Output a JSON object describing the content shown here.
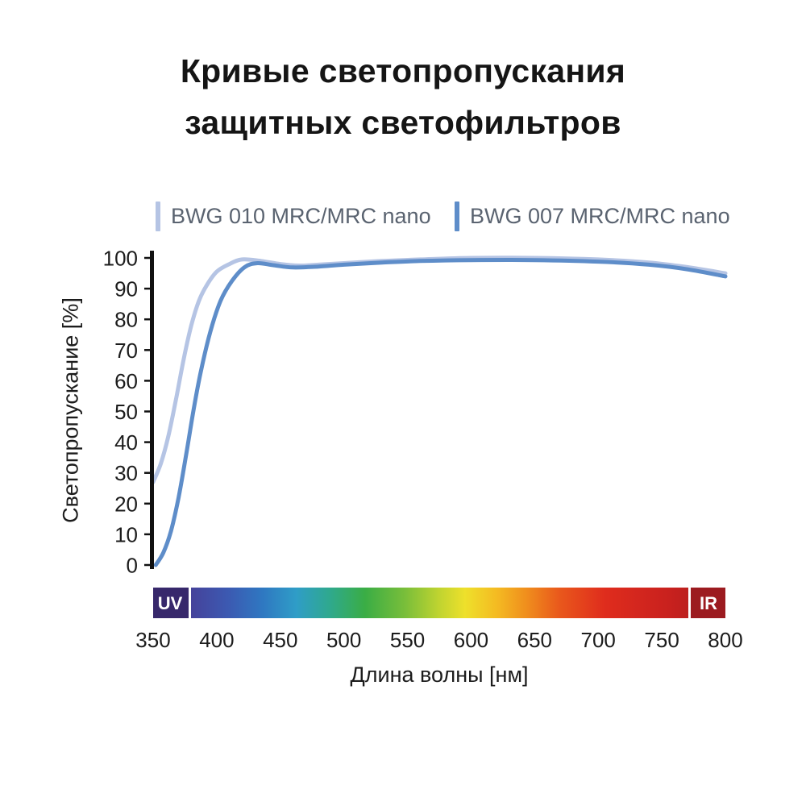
{
  "title": {
    "line1": "Кривые светопропускания",
    "line2": "защитных светофильтров"
  },
  "legend": [
    {
      "label": "BWG 010 MRC/MRC nano",
      "color": "#b5c4e4"
    },
    {
      "label": "BWG 007 MRC/MRC nano",
      "color": "#5e8dc9"
    }
  ],
  "chart_data": {
    "type": "line",
    "title": "Кривые светопропускания защитных светофильтров",
    "xlabel": "Длина волны [нм]",
    "ylabel": "Светопропускание [%]",
    "xlim": [
      350,
      800
    ],
    "ylim": [
      0,
      100
    ],
    "x_ticks": [
      350,
      400,
      450,
      500,
      550,
      600,
      650,
      700,
      750,
      800
    ],
    "y_ticks": [
      0,
      10,
      20,
      30,
      40,
      50,
      60,
      70,
      80,
      90,
      100
    ],
    "grid": false,
    "legend_position": "top",
    "series": [
      {
        "name": "BWG 010 MRC/MRC nano",
        "color": "#b5c4e4",
        "x": [
          350,
          356,
          362,
          368,
          374,
          380,
          386,
          392,
          400,
          410,
          420,
          435,
          450,
          465,
          480,
          500,
          530,
          560,
          600,
          650,
          700,
          740,
          770,
          800
        ],
        "y": [
          27,
          33,
          42,
          54,
          67,
          78,
          86,
          91,
          95.5,
          98,
          99.5,
          99,
          98,
          97.5,
          97.8,
          98.3,
          99,
          99.5,
          100,
          100,
          99.5,
          98.5,
          97,
          95
        ]
      },
      {
        "name": "BWG 007 MRC/MRC nano",
        "color": "#5e8dc9",
        "x": [
          352,
          358,
          364,
          370,
          376,
          382,
          388,
          395,
          403,
          412,
          422,
          432,
          445,
          460,
          480,
          500,
          530,
          560,
          600,
          650,
          700,
          740,
          770,
          800
        ],
        "y": [
          0,
          4,
          11,
          22,
          36,
          51,
          64,
          76,
          86,
          92.5,
          97,
          98.3,
          97.6,
          96.9,
          97.2,
          97.8,
          98.5,
          99,
          99.3,
          99.3,
          98.8,
          97.8,
          96.3,
          94
        ]
      }
    ],
    "spectrum_bar": {
      "uv_label": "UV",
      "ir_label": "IR",
      "uv_color": "#37286b",
      "ir_color": "#9c1b20",
      "stops": [
        {
          "pos": 0.0,
          "color": "#3b2a6e"
        },
        {
          "pos": 0.07,
          "color": "#45449c"
        },
        {
          "pos": 0.13,
          "color": "#3c59b1"
        },
        {
          "pos": 0.19,
          "color": "#2f77c1"
        },
        {
          "pos": 0.25,
          "color": "#2f9dc7"
        },
        {
          "pos": 0.31,
          "color": "#2fa98c"
        },
        {
          "pos": 0.37,
          "color": "#3aad45"
        },
        {
          "pos": 0.44,
          "color": "#79be3a"
        },
        {
          "pos": 0.5,
          "color": "#c0d430"
        },
        {
          "pos": 0.545,
          "color": "#eee02b"
        },
        {
          "pos": 0.6,
          "color": "#f4bb22"
        },
        {
          "pos": 0.65,
          "color": "#f0901d"
        },
        {
          "pos": 0.71,
          "color": "#e9581c"
        },
        {
          "pos": 0.79,
          "color": "#df2c1d"
        },
        {
          "pos": 0.9,
          "color": "#c9211e"
        },
        {
          "pos": 1.0,
          "color": "#a61c1f"
        }
      ]
    },
    "axis_color": "#111111",
    "tick_label_color": "#1c1c1c"
  }
}
